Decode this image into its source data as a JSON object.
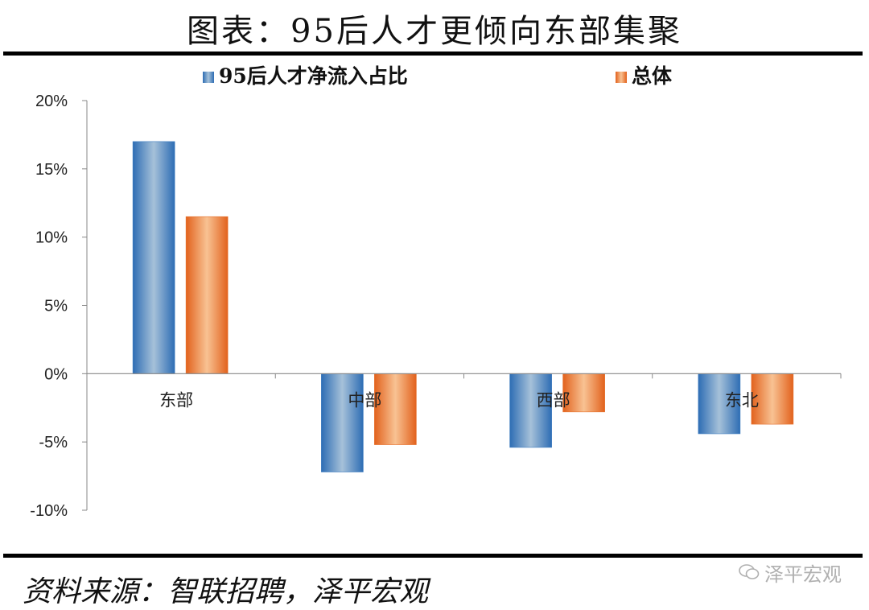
{
  "page": {
    "title": "图表：95后人才更倾向东部集聚",
    "source": "资料来源：智联招聘，泽平宏观",
    "watermark": "泽平宏观",
    "watermark_icon": "wechat-icon"
  },
  "chart_data": {
    "type": "bar",
    "title": "图表：95后人才更倾向东部集聚",
    "categories": [
      "东部",
      "中部",
      "西部",
      "东北"
    ],
    "series": [
      {
        "name": "95后人才净流入占比",
        "values": [
          17.0,
          -7.2,
          -5.4,
          -4.4
        ],
        "color": "#3a7abf",
        "highlight": "#a6c1d9"
      },
      {
        "name": "总体",
        "values": [
          11.5,
          -5.2,
          -2.8,
          -3.7
        ],
        "color": "#e6702b",
        "highlight": "#f6bc8a"
      }
    ],
    "yticks": [
      20,
      15,
      10,
      5,
      0,
      -5,
      -10
    ],
    "ytick_labels": [
      "20%",
      "15%",
      "10%",
      "5%",
      "0%",
      "-5%",
      "-10%"
    ],
    "ylim": [
      -10,
      20
    ],
    "xlabel": "",
    "ylabel": "",
    "legend": "top",
    "grid": false
  }
}
